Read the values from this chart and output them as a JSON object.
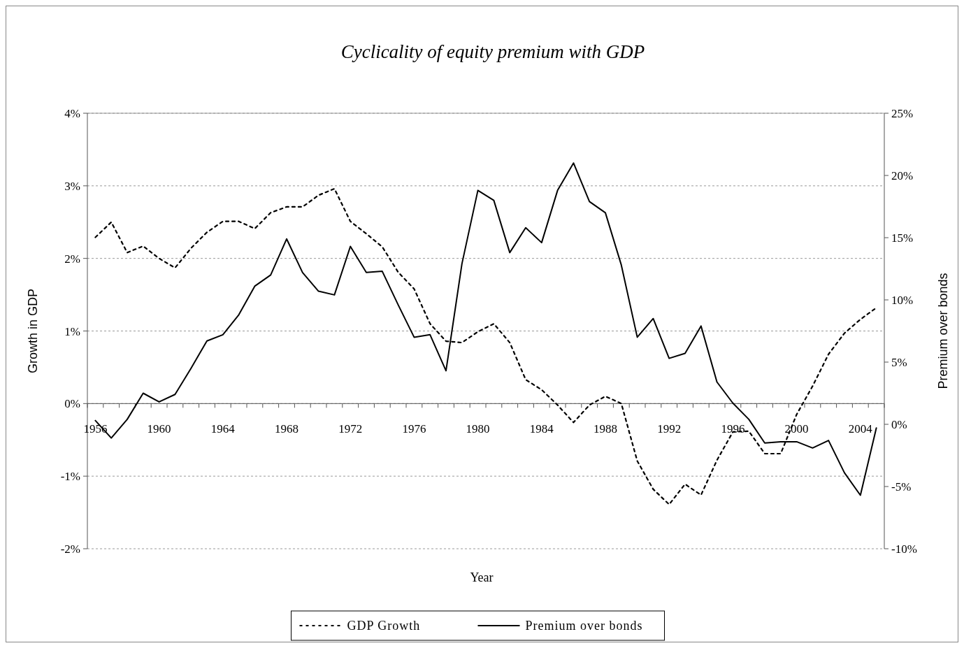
{
  "chart_data": {
    "type": "line",
    "title": "Cyclicality of equity premium with GDP",
    "xlabel": "Year",
    "ylabel": "Growth in GDP",
    "y2label": "Premium over bonds",
    "categories": [
      "1956",
      null,
      null,
      null,
      "1960",
      null,
      null,
      null,
      "1964",
      null,
      null,
      null,
      "1968",
      null,
      null,
      null,
      "1972",
      null,
      null,
      null,
      "1976",
      null,
      null,
      null,
      "1980",
      null,
      null,
      null,
      "1984",
      null,
      null,
      null,
      "1988",
      null,
      null,
      null,
      "1992",
      null,
      null,
      null,
      "1996",
      null,
      null,
      null,
      "2000",
      null,
      null,
      null,
      "2004",
      null
    ],
    "series": [
      {
        "name": "GDP Growth",
        "color": "#000000",
        "line_style": "dashed",
        "values": [
          2.29,
          2.5,
          2.08,
          2.17,
          2.0,
          1.87,
          2.14,
          2.36,
          2.51,
          2.51,
          2.41,
          2.63,
          2.71,
          2.71,
          2.87,
          2.96,
          2.51,
          2.34,
          2.16,
          1.81,
          1.58,
          1.1,
          0.86,
          0.84,
          0.99,
          1.1,
          0.84,
          0.33,
          0.19,
          -0.02,
          -0.26,
          -0.02,
          0.1,
          0.0,
          -0.79,
          -1.18,
          -1.39,
          -1.11,
          -1.26,
          -0.78,
          -0.39,
          -0.38,
          -0.69,
          -0.69,
          -0.15,
          0.24,
          0.68,
          0.97,
          1.16,
          1.32
        ]
      },
      {
        "name": "Premium over bonds",
        "color": "#000000",
        "line_style": "solid",
        "axis": "y2",
        "values": [
          0.3,
          -1.1,
          0.4,
          2.5,
          1.8,
          2.4,
          4.5,
          6.7,
          7.2,
          8.8,
          11.1,
          12.0,
          14.9,
          12.2,
          10.7,
          10.4,
          14.3,
          12.2,
          12.3,
          9.6,
          7.0,
          7.2,
          4.3,
          12.9,
          18.8,
          18.0,
          13.8,
          15.8,
          14.6,
          18.8,
          21.0,
          17.9,
          17.0,
          12.8,
          7.0,
          8.5,
          5.3,
          5.7,
          7.9,
          3.4,
          1.7,
          0.4,
          -1.5,
          -1.4,
          -1.4,
          -1.9,
          -1.3,
          -3.9,
          -5.7,
          -0.3
        ]
      }
    ],
    "ylim": [
      -2,
      4
    ],
    "yticks": [
      {
        "value": -2,
        "label": "-2%"
      },
      {
        "value": -1,
        "label": "-1%"
      },
      {
        "value": 0,
        "label": "0%"
      },
      {
        "value": 1,
        "label": "1%"
      },
      {
        "value": 2,
        "label": "2%"
      },
      {
        "value": 3,
        "label": "3%"
      },
      {
        "value": 4,
        "label": "4%"
      }
    ],
    "y2lim": [
      -10,
      25
    ],
    "y2ticks": [
      {
        "value": -10,
        "label": "-10%"
      },
      {
        "value": -5,
        "label": "-5%"
      },
      {
        "value": 0,
        "label": "0%"
      },
      {
        "value": 5,
        "label": "5%"
      },
      {
        "value": 10,
        "label": "10%"
      },
      {
        "value": 15,
        "label": "15%"
      },
      {
        "value": 20,
        "label": "20%"
      },
      {
        "value": 25,
        "label": "25%"
      }
    ],
    "grid": "y",
    "legend": "bottom",
    "marker": "none"
  }
}
